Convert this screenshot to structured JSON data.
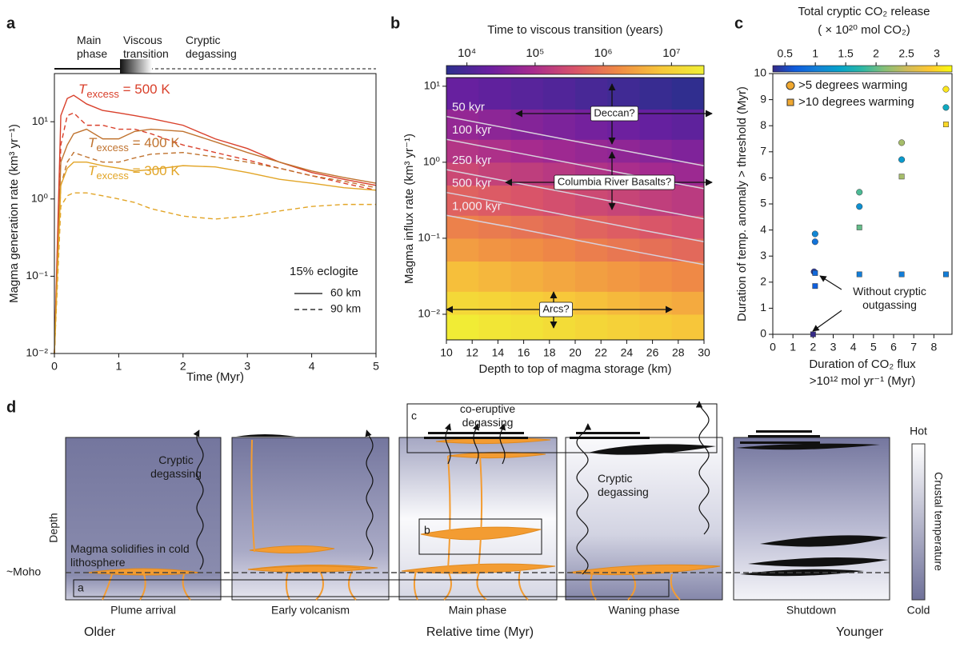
{
  "panel_labels": [
    "a",
    "b",
    "c",
    "d"
  ],
  "chart_data": [
    {
      "type": "line",
      "log_y": true,
      "phases": [
        "Main phase",
        "Viscous transition",
        "Cryptic degassing"
      ],
      "xlabel": "Time (Myr)",
      "ylabel": "Magma generation rate (km³ yr⁻¹)",
      "x": [
        0,
        0.1,
        0.2,
        0.3,
        0.5,
        0.75,
        1,
        1.25,
        1.5,
        2,
        2.5,
        3,
        3.5,
        4,
        4.5,
        5
      ],
      "series": [
        {
          "color": "#d9402b",
          "dash": false,
          "values": [
            0.01,
            12,
            20,
            22,
            17,
            14,
            13,
            12,
            11,
            9,
            6,
            4.5,
            3,
            2.2,
            1.8,
            1.5
          ]
        },
        {
          "color": "#d9402b",
          "dash": true,
          "values": [
            0.01,
            5,
            12,
            13,
            9,
            9,
            8,
            8,
            7,
            5,
            4,
            3.2,
            2.5,
            2,
            1.6,
            1.3
          ]
        },
        {
          "color": "#c0732f",
          "dash": false,
          "values": [
            0.01,
            3,
            5,
            7,
            8,
            6,
            6,
            7.5,
            8,
            7.5,
            5.5,
            4,
            3,
            2.3,
            1.9,
            1.6
          ]
        },
        {
          "color": "#c0732f",
          "dash": true,
          "values": [
            0.01,
            1.5,
            3,
            4,
            3.5,
            3,
            3,
            3.4,
            3.8,
            4,
            3.5,
            3,
            2.5,
            2,
            1.7,
            1.4
          ]
        },
        {
          "color": "#e2a527",
          "dash": false,
          "values": [
            0.01,
            1.5,
            2.5,
            3,
            3,
            2.7,
            2.5,
            2.3,
            2.4,
            2.7,
            2.6,
            2.2,
            1.8,
            1.6,
            1.4,
            1.3
          ]
        },
        {
          "color": "#e2a527",
          "dash": true,
          "values": [
            0.01,
            0.8,
            1.1,
            1.2,
            1.2,
            1.1,
            1.0,
            0.9,
            0.75,
            0.6,
            0.55,
            0.6,
            0.7,
            0.8,
            0.85,
            0.85
          ]
        }
      ],
      "annotations": [
        {
          "symbol": "T",
          "subscript": "excess",
          "text": " = 500 K",
          "color": "#d9402b"
        },
        {
          "symbol": "T",
          "subscript": "excess",
          "text": " = 400 K",
          "color": "#c0732f"
        },
        {
          "symbol": "T",
          "subscript": "excess",
          "text": " = 300 K",
          "color": "#e2a527"
        }
      ],
      "legend": {
        "title": "15% eclogite",
        "position": "lower right",
        "entries": [
          {
            "label": "60 km",
            "dash": false
          },
          {
            "label": "90 km",
            "dash": true
          }
        ]
      },
      "xlim": [
        0,
        5
      ],
      "xticks": [
        0,
        1,
        2,
        3,
        4,
        5
      ],
      "ylim": [
        0.01,
        42
      ],
      "yticks": [
        {
          "value": 0.01,
          "label": "10⁻²"
        },
        {
          "value": 0.1,
          "label": "10⁻¹"
        },
        {
          "value": 1,
          "label": "10⁰"
        },
        {
          "value": 10,
          "label": "10¹"
        }
      ]
    },
    {
      "type": "heatmap",
      "log_y": true,
      "colorbar_title": "Time to viscous transition (years)",
      "xlabel": "Depth to top of magma storage (km)",
      "ylabel": "Magma influx rate (km³ yr⁻¹)",
      "colormap": [
        "#2c2f8e",
        "#6a1fa0",
        "#a72b8e",
        "#d8536a",
        "#f08a45",
        "#f7c73a",
        "#f0f035"
      ],
      "clim": [
        5000,
        30000000
      ],
      "cticks": [
        {
          "value": 10000,
          "label": "10⁴"
        },
        {
          "value": 100000,
          "label": "10⁵"
        },
        {
          "value": 1000000,
          "label": "10⁶"
        },
        {
          "value": 10000000,
          "label": "10⁷"
        }
      ],
      "x_edges": [
        10,
        12.5,
        15,
        17.5,
        20,
        22.5,
        25,
        27.5,
        30
      ],
      "y_edges": [
        0.0046,
        0.01,
        0.02,
        0.05,
        0.1,
        0.2,
        0.5,
        1,
        2,
        5,
        13
      ],
      "z": [
        [
          26000000,
          21000000,
          18000000,
          15000000,
          12000000,
          10000000,
          8300000,
          6900000
        ],
        [
          13000000,
          11000000,
          8900000,
          7400000,
          6100000,
          5100000,
          4200000,
          3500000
        ],
        [
          5800000,
          4800000,
          4000000,
          3300000,
          2700000,
          2300000,
          1900000,
          1600000
        ],
        [
          2600000,
          2100000,
          1800000,
          1500000,
          1200000,
          1000000,
          840000,
          700000
        ],
        [
          1300000,
          1100000,
          890000,
          740000,
          610000,
          510000,
          420000,
          350000
        ],
        [
          580000,
          480000,
          400000,
          330000,
          270000,
          230000,
          190000,
          160000
        ],
        [
          260000,
          210000,
          180000,
          150000,
          120000,
          100000,
          84000,
          70000
        ],
        [
          130000,
          110000,
          89000,
          74000,
          61000,
          51000,
          42000,
          35000
        ],
        [
          58000,
          48000,
          40000,
          33000,
          27000,
          23000,
          19000,
          16000
        ],
        [
          20000,
          17000,
          14000,
          12000,
          9700,
          8000,
          6600,
          5500
        ]
      ],
      "contours": [
        {
          "value": 50000,
          "label": "50 kyr",
          "x": [
            10,
            15,
            20,
            25,
            30
          ],
          "y": [
            4,
            2.75,
            1.89,
            1.3,
            0.9
          ]
        },
        {
          "value": 100000,
          "label": "100 kyr",
          "x": [
            10,
            15,
            20,
            25,
            30
          ],
          "y": [
            2,
            1.38,
            0.95,
            0.65,
            0.45
          ]
        },
        {
          "value": 250000,
          "label": "250 kyr",
          "x": [
            10,
            15,
            20,
            25,
            30
          ],
          "y": [
            0.8,
            0.55,
            0.38,
            0.26,
            0.18
          ]
        },
        {
          "value": 500000,
          "label": "500 kyr",
          "x": [
            10,
            15,
            20,
            25,
            30
          ],
          "y": [
            0.4,
            0.28,
            0.19,
            0.13,
            0.09
          ]
        },
        {
          "value": 1000000,
          "label": "1,000 kyr",
          "x": [
            10,
            15,
            20,
            25,
            30
          ],
          "y": [
            0.2,
            0.14,
            0.095,
            0.065,
            0.045
          ]
        }
      ],
      "annotations": [
        "Deccan?",
        "Columbia River Basalts?",
        "Arcs?"
      ],
      "xlim": [
        10,
        30
      ],
      "xticks": [
        10,
        12,
        14,
        16,
        18,
        20,
        22,
        24,
        26,
        28,
        30
      ],
      "ylim": [
        0.0046,
        13
      ],
      "yticks": [
        {
          "value": 0.01,
          "label": "10⁻²"
        },
        {
          "value": 0.1,
          "label": "10⁻¹"
        },
        {
          "value": 1,
          "label": "10⁰"
        },
        {
          "value": 10,
          "label": "10¹"
        }
      ]
    },
    {
      "type": "scatter",
      "colorbar_title": [
        "Total cryptic CO₂ release",
        "( × 10²⁰ mol CO₂)"
      ],
      "colormap": [
        "#352a87",
        "#0f5cdd",
        "#1481d6",
        "#06a4ca",
        "#2eb7a4",
        "#87bf77",
        "#d1bb59",
        "#fec832",
        "#f9fb0e"
      ],
      "clim": [
        0.3,
        3.25
      ],
      "cticks": [
        0.5,
        1,
        1.5,
        2,
        2.5,
        3
      ],
      "xlabel": [
        "Duration of CO₂ flux",
        ">10¹² mol yr⁻¹ (Myr)"
      ],
      "ylabel": "Duration of temp. anomaly > threshold (Myr)",
      "legend": {
        "position": "upper left"
      },
      "series": [
        {
          "name": ">5 degrees warming",
          "marker": "circle",
          "legend_color": "#f0a830",
          "x": [
            2.05,
            2.1,
            2.1,
            4.3,
            4.3,
            6.4,
            6.4,
            8.6,
            8.6
          ],
          "y": [
            2.4,
            3.55,
            3.85,
            4.9,
            5.45,
            6.7,
            7.35,
            8.7,
            9.4
          ],
          "c": [
            0.4,
            0.9,
            1.1,
            1.2,
            1.9,
            1.3,
            2.3,
            1.5,
            3.1
          ]
        },
        {
          "name": ">10 degrees warming",
          "marker": "square",
          "legend_color": "#f0a830",
          "x": [
            2.0,
            2.1,
            2.1,
            4.3,
            4.3,
            6.4,
            6.4,
            8.6,
            8.6
          ],
          "y": [
            0,
            1.85,
            2.35,
            2.3,
            4.1,
            2.3,
            6.05,
            2.3,
            8.05
          ],
          "c": [
            0.3,
            0.7,
            0.8,
            1.0,
            2.0,
            1.0,
            2.3,
            1.0,
            3.0
          ]
        }
      ],
      "annotation": "Without cryptic outgassing",
      "xlim": [
        0,
        8.9
      ],
      "xticks": [
        0,
        1,
        2,
        3,
        4,
        5,
        6,
        7,
        8
      ],
      "ylim": [
        0,
        10
      ],
      "yticks": [
        0,
        1,
        2,
        3,
        4,
        5,
        6,
        7,
        8,
        9,
        10
      ]
    }
  ],
  "diagram": {
    "stages": [
      "Plume arrival",
      "Early volcanism",
      "Main phase",
      "Waning phase",
      "Shutdown"
    ],
    "depth_label": "Depth",
    "moho_label": "~Moho",
    "notes": [
      "Cryptic degassing",
      "Magma solidifies in cold lithosphere",
      "Cryptic degassing",
      "co-eruptive degassing"
    ],
    "boxes": [
      "a",
      "b",
      "c"
    ],
    "time_axis": {
      "older": "Older",
      "label": "Relative time (Myr)",
      "younger": "Younger"
    },
    "temperature_scale": {
      "hot": "Hot",
      "label": "Crustal temperature",
      "cold": "Cold"
    }
  }
}
